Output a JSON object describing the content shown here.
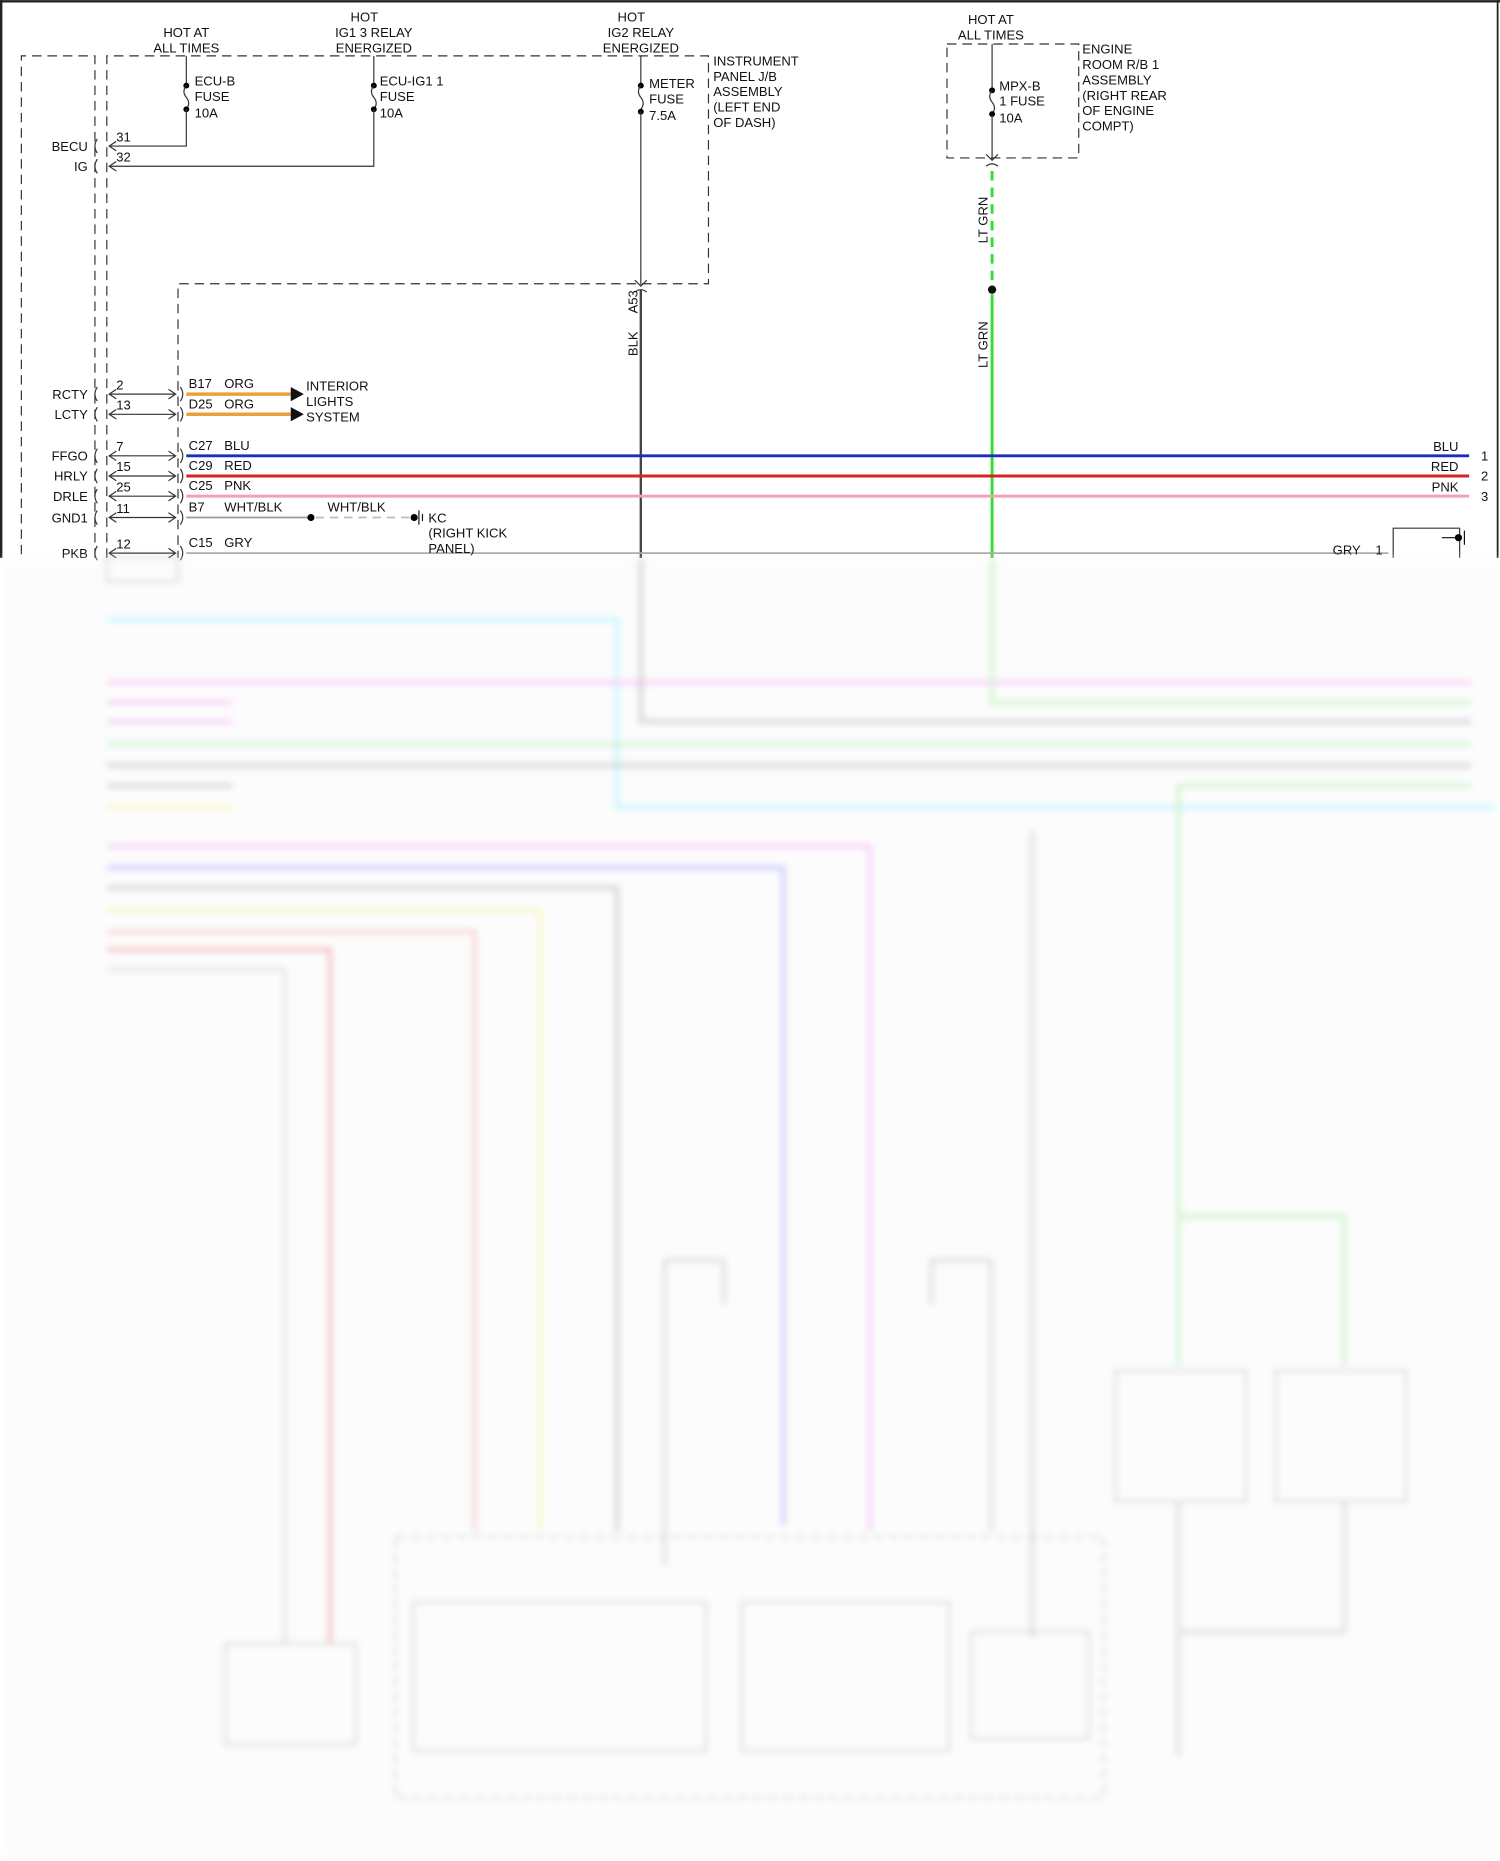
{
  "power_sources": [
    {
      "line1": "",
      "line2": "HOT AT",
      "line3": "ALL TIMES"
    },
    {
      "line1": "HOT",
      "line2": "IG1 3 RELAY",
      "line3": "ENERGIZED"
    },
    {
      "line1": "HOT",
      "line2": "IG2 RELAY",
      "line3": "ENERGIZED"
    },
    {
      "line1": "HOT AT",
      "line2": "ALL TIMES"
    }
  ],
  "fuses": [
    {
      "l1": "ECU-B",
      "l2": "FUSE",
      "l3": "10A"
    },
    {
      "l1": "ECU-IG1 1",
      "l2": "FUSE",
      "l3": "10A"
    },
    {
      "l1": "METER",
      "l2": "FUSE",
      "l3": "7.5A"
    },
    {
      "l1": "MPX-B",
      "l2": "1 FUSE",
      "l3": "10A"
    }
  ],
  "instrument_panel_jb": [
    "INSTRUMENT",
    "PANEL J/B",
    "ASSEMBLY",
    "(LEFT END",
    "OF DASH)"
  ],
  "engine_room_rb": [
    "ENGINE",
    "ROOM R/B 1",
    "ASSEMBLY",
    "(RIGHT REAR",
    "OF ENGINE",
    "COMPT)"
  ],
  "power_pins": [
    {
      "name": "BECU",
      "pin": "31"
    },
    {
      "name": "IG",
      "pin": "32"
    }
  ],
  "meter_wire": {
    "connector": "A53",
    "color": "BLK"
  },
  "mpx_wire": {
    "color1": "LT GRN",
    "color2": "LT GRN"
  },
  "signal_pins": [
    {
      "name": "RCTY",
      "pin": "2",
      "conn": "B17",
      "color": "ORG"
    },
    {
      "name": "LCTY",
      "pin": "13",
      "conn": "D25",
      "color": "ORG"
    },
    {
      "name": "FFGO",
      "pin": "7",
      "conn": "C27",
      "color": "BLU",
      "end_label": "BLU",
      "end_pin": "1"
    },
    {
      "name": "HRLY",
      "pin": "15",
      "conn": "C29",
      "color": "RED",
      "end_label": "RED",
      "end_pin": "2"
    },
    {
      "name": "DRLE",
      "pin": "25",
      "conn": "C25",
      "color": "PNK",
      "end_label": "PNK",
      "end_pin": "3"
    },
    {
      "name": "GND1",
      "pin": "11",
      "conn": "B7",
      "color": "WHT/BLK"
    },
    {
      "name": "PKB",
      "pin": "12",
      "conn": "C15",
      "color": "GRY"
    }
  ],
  "interior_lights": [
    "INTERIOR",
    "LIGHTS",
    "SYSTEM"
  ],
  "ground": {
    "wire": "WHT/BLK",
    "name": "KC",
    "loc1": "(RIGHT KICK",
    "loc2": "PANEL)"
  },
  "pkb_switch": {
    "wire": "GRY",
    "pin": "1"
  },
  "colors": {
    "org": "#e9a23b",
    "blu": "#1a2dbd",
    "red": "#d42323",
    "pnk": "#f0a3b3",
    "ltgrn": "#35dd35",
    "cyan": "#7ff0ff",
    "magenta": "#f090f0",
    "violet": "#8080ff",
    "yellow": "#ffff80",
    "gray": "#999999"
  }
}
